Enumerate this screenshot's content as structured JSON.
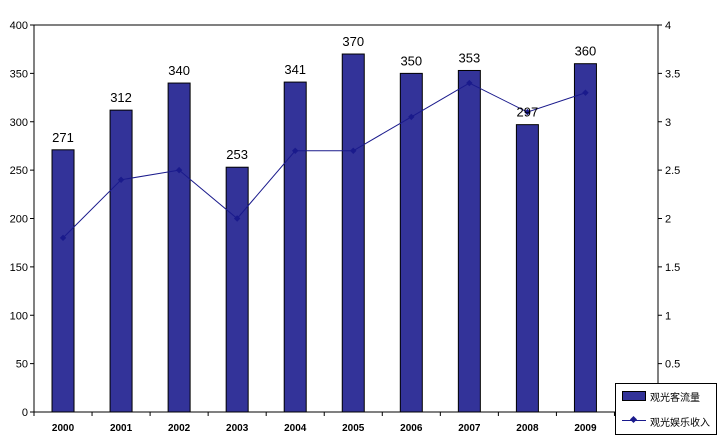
{
  "chart_data": {
    "type": "bar",
    "categories": [
      "2000",
      "2001",
      "2002",
      "2003",
      "2004",
      "2005",
      "2006",
      "2007",
      "2008",
      "2009"
    ],
    "series": [
      {
        "name": "观光客流量",
        "type": "bar",
        "axis": "left",
        "values": [
          271,
          312,
          340,
          253,
          341,
          370,
          350,
          353,
          297,
          360
        ]
      },
      {
        "name": "观光娱乐收入",
        "type": "line",
        "axis": "right",
        "values": [
          1.8,
          2.4,
          2.5,
          2.0,
          2.7,
          2.7,
          3.05,
          3.4,
          3.1,
          3.3
        ]
      }
    ],
    "data_labels": [
      "271",
      "312",
      "340",
      "253",
      "341",
      "370",
      "350",
      "353",
      "297",
      "360"
    ],
    "y_left": {
      "lim": [
        0,
        400
      ],
      "ticks": [
        "0",
        "50",
        "100",
        "150",
        "200",
        "250",
        "300",
        "350",
        "400"
      ]
    },
    "y_right": {
      "lim": [
        0,
        4
      ],
      "ticks": [
        "0.5",
        "1",
        "1.5",
        "2",
        "2.5",
        "3",
        "3.5",
        "4"
      ]
    },
    "legend_position": "bottom-right",
    "grid": false,
    "colors": {
      "bar": "#333399",
      "line": "#1a1a8c"
    }
  },
  "legend": {
    "items": [
      "观光客流量",
      "观光娱乐收入"
    ]
  }
}
